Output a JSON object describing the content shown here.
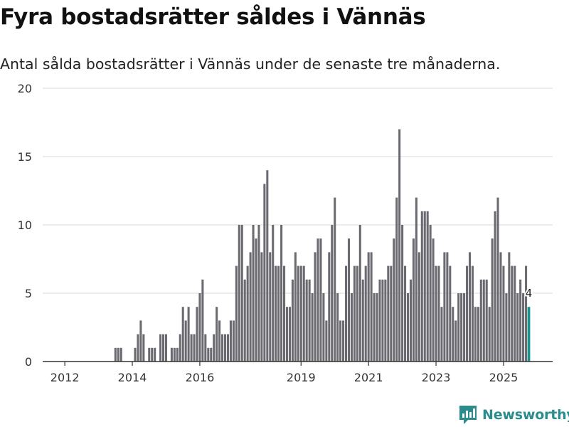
{
  "header": {
    "title": "Fyra bostadsrätter såldes i Vännäs",
    "subtitle": "Antal sålda bostadsrätter i Vännäs under de senaste tre månaderna."
  },
  "brand": {
    "name": "Newsworthy",
    "logo_icon": "newsworthy-chart-icon",
    "color": "#2a8c8c"
  },
  "colors": {
    "bar": "#6b6a70",
    "highlight": "#17928f",
    "grid": "#d9d9d9",
    "axis": "#333333"
  },
  "chart_data": {
    "type": "bar",
    "title": "Fyra bostadsrätter såldes i Vännäs",
    "subtitle": "Antal sålda bostadsrätter i Vännäs under de senaste tre månaderna.",
    "xlabel": "",
    "ylabel": "",
    "ylim": [
      0,
      20
    ],
    "yticks": [
      0,
      5,
      10,
      15,
      20
    ],
    "grid": true,
    "legend": "none",
    "x_start": "2011-06",
    "frequency": "monthly",
    "xtick_labels": [
      {
        "label": "2012",
        "index": 7
      },
      {
        "label": "2014",
        "index": 31
      },
      {
        "label": "2016",
        "index": 55
      },
      {
        "label": "2019",
        "index": 91
      },
      {
        "label": "2021",
        "index": 115
      },
      {
        "label": "2023",
        "index": 139
      },
      {
        "label": "2025",
        "index": 163
      }
    ],
    "values": [
      0,
      0,
      0,
      0,
      0,
      0,
      0,
      0,
      0,
      0,
      0,
      0,
      0,
      0,
      0,
      0,
      0,
      0,
      0,
      0,
      0,
      0,
      0,
      0,
      0,
      1,
      1,
      1,
      0,
      0,
      0,
      0,
      1,
      2,
      3,
      2,
      0,
      1,
      1,
      1,
      0,
      2,
      2,
      2,
      0,
      1,
      1,
      1,
      2,
      4,
      3,
      4,
      2,
      2,
      4,
      5,
      6,
      2,
      1,
      1,
      2,
      4,
      3,
      2,
      2,
      2,
      3,
      3,
      7,
      10,
      10,
      6,
      7,
      8,
      10,
      9,
      10,
      8,
      13,
      14,
      8,
      10,
      7,
      7,
      10,
      7,
      4,
      4,
      6,
      8,
      7,
      7,
      7,
      6,
      6,
      5,
      8,
      9,
      9,
      5,
      3,
      8,
      10,
      12,
      5,
      3,
      3,
      7,
      9,
      5,
      7,
      7,
      10,
      6,
      7,
      8,
      8,
      5,
      5,
      6,
      6,
      6,
      7,
      7,
      9,
      12,
      17,
      10,
      7,
      5,
      6,
      9,
      12,
      8,
      11,
      11,
      11,
      10,
      9,
      7,
      7,
      4,
      8,
      8,
      7,
      4,
      3,
      5,
      5,
      5,
      7,
      8,
      7,
      4,
      4,
      6,
      6,
      6,
      4,
      9,
      11,
      12,
      8,
      7,
      5,
      8,
      7,
      7,
      5,
      6,
      5,
      7,
      4
    ],
    "highlight_last": true,
    "annotation": {
      "index": 172,
      "text": "4"
    }
  }
}
